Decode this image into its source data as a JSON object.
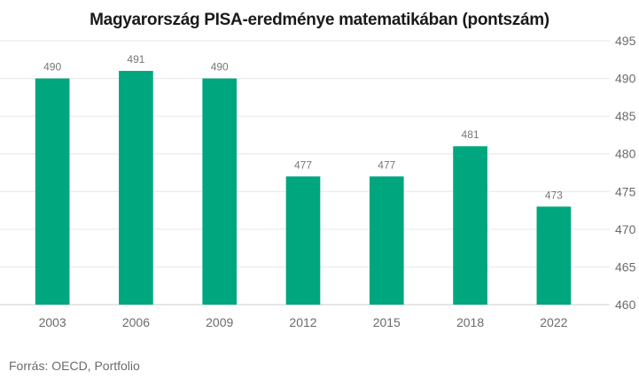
{
  "chart_data": {
    "type": "bar",
    "title": "Magyarország PISA-eredménye matematikában (pontszám)",
    "categories": [
      "2003",
      "2006",
      "2009",
      "2012",
      "2015",
      "2018",
      "2022"
    ],
    "values": [
      490,
      491,
      490,
      477,
      477,
      481,
      473
    ],
    "ylim": [
      460,
      495
    ],
    "yticks": [
      460,
      465,
      470,
      475,
      480,
      485,
      490,
      495
    ],
    "y_axis_side": "right",
    "grid": true,
    "bar_color": "#00a67e",
    "xlabel": "",
    "ylabel": ""
  },
  "source": "Forrás: OECD, Portfolio"
}
